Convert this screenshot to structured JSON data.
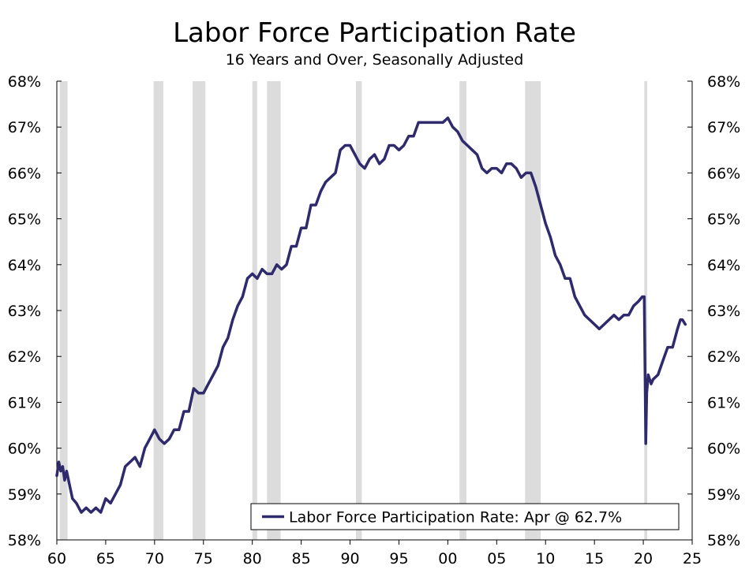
{
  "title": "Labor Force Participation Rate",
  "subtitle": "16 Years and Over, Seasonally Adjusted",
  "chart_data": {
    "type": "line",
    "title": "Labor Force Participation Rate",
    "subtitle": "16 Years and Over, Seasonally Adjusted",
    "xlabel": "",
    "ylabel": "",
    "xlim": [
      1960,
      2025
    ],
    "ylim": [
      58,
      68
    ],
    "x_ticks": [
      1960,
      1965,
      1970,
      1975,
      1980,
      1985,
      1990,
      1995,
      2000,
      2005,
      2010,
      2015,
      2020,
      2025
    ],
    "x_tick_labels": [
      "60",
      "65",
      "70",
      "75",
      "80",
      "85",
      "90",
      "95",
      "00",
      "05",
      "10",
      "15",
      "20",
      "25"
    ],
    "y_ticks": [
      58,
      59,
      60,
      61,
      62,
      63,
      64,
      65,
      66,
      67,
      68
    ],
    "y_tick_labels": [
      "58%",
      "59%",
      "60%",
      "61%",
      "62%",
      "63%",
      "64%",
      "65%",
      "66%",
      "67%",
      "68%"
    ],
    "grid": false,
    "legend_position": "bottom-right",
    "series_color": "#2e2a6b",
    "recession_color": "#dcdcdc",
    "recessions": [
      [
        1960.3,
        1961.1
      ],
      [
        1969.9,
        1970.9
      ],
      [
        1973.9,
        1975.2
      ],
      [
        1980.0,
        1980.5
      ],
      [
        1981.5,
        1982.9
      ],
      [
        1990.6,
        1991.2
      ],
      [
        2001.2,
        2001.9
      ],
      [
        2007.9,
        2009.5
      ],
      [
        2020.1,
        2020.4
      ]
    ],
    "series": [
      {
        "name": "Labor Force Participation Rate: Apr @ 62.7%",
        "x": [
          1960.0,
          1960.2,
          1960.4,
          1960.6,
          1960.8,
          1961.0,
          1961.3,
          1961.6,
          1962.0,
          1962.5,
          1963.0,
          1963.5,
          1964.0,
          1964.5,
          1965.0,
          1965.5,
          1966.0,
          1966.5,
          1967.0,
          1967.5,
          1968.0,
          1968.5,
          1969.0,
          1969.5,
          1970.0,
          1970.5,
          1971.0,
          1971.5,
          1972.0,
          1972.5,
          1973.0,
          1973.5,
          1974.0,
          1974.5,
          1975.0,
          1975.5,
          1976.0,
          1976.5,
          1977.0,
          1977.5,
          1978.0,
          1978.5,
          1979.0,
          1979.5,
          1980.0,
          1980.5,
          1981.0,
          1981.5,
          1982.0,
          1982.5,
          1983.0,
          1983.5,
          1984.0,
          1984.5,
          1985.0,
          1985.5,
          1986.0,
          1986.5,
          1987.0,
          1987.5,
          1988.0,
          1988.5,
          1989.0,
          1989.5,
          1990.0,
          1990.5,
          1991.0,
          1991.5,
          1992.0,
          1992.5,
          1993.0,
          1993.5,
          1994.0,
          1994.5,
          1995.0,
          1995.5,
          1996.0,
          1996.5,
          1997.0,
          1997.5,
          1998.0,
          1998.5,
          1999.0,
          1999.5,
          2000.0,
          2000.5,
          2001.0,
          2001.5,
          2002.0,
          2002.5,
          2003.0,
          2003.5,
          2004.0,
          2004.5,
          2005.0,
          2005.5,
          2006.0,
          2006.5,
          2007.0,
          2007.5,
          2008.0,
          2008.5,
          2009.0,
          2009.5,
          2010.0,
          2010.5,
          2011.0,
          2011.5,
          2012.0,
          2012.5,
          2013.0,
          2013.5,
          2014.0,
          2014.5,
          2015.0,
          2015.5,
          2016.0,
          2016.5,
          2017.0,
          2017.5,
          2018.0,
          2018.5,
          2019.0,
          2019.5,
          2019.9,
          2020.1,
          2020.25,
          2020.35,
          2020.5,
          2020.8,
          2021.0,
          2021.5,
          2022.0,
          2022.5,
          2023.0,
          2023.5,
          2023.8,
          2024.0,
          2024.3
        ],
        "values": [
          59.4,
          59.7,
          59.5,
          59.6,
          59.3,
          59.5,
          59.2,
          58.9,
          58.8,
          58.6,
          58.7,
          58.6,
          58.7,
          58.6,
          58.9,
          58.8,
          59.0,
          59.2,
          59.6,
          59.7,
          59.8,
          59.6,
          60.0,
          60.2,
          60.4,
          60.2,
          60.1,
          60.2,
          60.4,
          60.4,
          60.8,
          60.8,
          61.3,
          61.2,
          61.2,
          61.4,
          61.6,
          61.8,
          62.2,
          62.4,
          62.8,
          63.1,
          63.3,
          63.7,
          63.8,
          63.7,
          63.9,
          63.8,
          63.8,
          64.0,
          63.9,
          64.0,
          64.4,
          64.4,
          64.8,
          64.8,
          65.3,
          65.3,
          65.6,
          65.8,
          65.9,
          66.0,
          66.5,
          66.6,
          66.6,
          66.4,
          66.2,
          66.1,
          66.3,
          66.4,
          66.2,
          66.3,
          66.6,
          66.6,
          66.5,
          66.6,
          66.8,
          66.8,
          67.1,
          67.1,
          67.1,
          67.1,
          67.1,
          67.1,
          67.2,
          67.0,
          66.9,
          66.7,
          66.6,
          66.5,
          66.4,
          66.1,
          66.0,
          66.1,
          66.1,
          66.0,
          66.2,
          66.2,
          66.1,
          65.9,
          66.0,
          66.0,
          65.7,
          65.3,
          64.9,
          64.6,
          64.2,
          64.0,
          63.7,
          63.7,
          63.3,
          63.1,
          62.9,
          62.8,
          62.7,
          62.6,
          62.7,
          62.8,
          62.9,
          62.8,
          62.9,
          62.9,
          63.1,
          63.2,
          63.3,
          63.3,
          60.1,
          61.2,
          61.6,
          61.4,
          61.5,
          61.6,
          61.9,
          62.2,
          62.2,
          62.6,
          62.8,
          62.8,
          62.7
        ]
      }
    ],
    "current_value_label": "Labor Force Participation Rate: Apr @ 62.7%"
  }
}
